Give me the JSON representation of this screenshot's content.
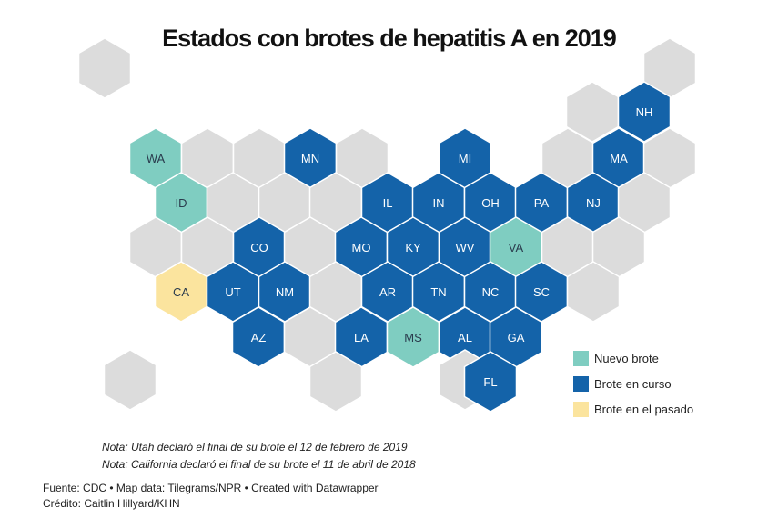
{
  "title": "Estados con brotes de hepatitis A en 2019",
  "colors": {
    "none": "#dcdcdc",
    "nuevo": "#7fcdc1",
    "curso": "#1463a9",
    "pasado": "#fbe49e",
    "label_light": "#ffffff",
    "label_dark": "#2a3b4d"
  },
  "legend": [
    {
      "key": "nuevo",
      "label": "Nuevo brote"
    },
    {
      "key": "curso",
      "label": "Brote en curso"
    },
    {
      "key": "pasado",
      "label": "Brote en el pasado"
    }
  ],
  "states": [
    {
      "abbr": "",
      "status": "none"
    },
    {
      "abbr": "",
      "status": "none"
    },
    {
      "abbr": "",
      "status": "none"
    },
    {
      "abbr": "NH",
      "status": "curso"
    },
    {
      "abbr": "WA",
      "status": "nuevo"
    },
    {
      "abbr": "",
      "status": "none"
    },
    {
      "abbr": "",
      "status": "none"
    },
    {
      "abbr": "MN",
      "status": "curso"
    },
    {
      "abbr": "",
      "status": "none"
    },
    {
      "abbr": "MI",
      "status": "curso"
    },
    {
      "abbr": "",
      "status": "none"
    },
    {
      "abbr": "MA",
      "status": "curso"
    },
    {
      "abbr": "",
      "status": "none"
    },
    {
      "abbr": "ID",
      "status": "nuevo"
    },
    {
      "abbr": "",
      "status": "none"
    },
    {
      "abbr": "",
      "status": "none"
    },
    {
      "abbr": "",
      "status": "none"
    },
    {
      "abbr": "IL",
      "status": "curso"
    },
    {
      "abbr": "IN",
      "status": "curso"
    },
    {
      "abbr": "OH",
      "status": "curso"
    },
    {
      "abbr": "PA",
      "status": "curso"
    },
    {
      "abbr": "NJ",
      "status": "curso"
    },
    {
      "abbr": "",
      "status": "none"
    },
    {
      "abbr": "",
      "status": "none"
    },
    {
      "abbr": "",
      "status": "none"
    },
    {
      "abbr": "CO",
      "status": "curso"
    },
    {
      "abbr": "",
      "status": "none"
    },
    {
      "abbr": "MO",
      "status": "curso"
    },
    {
      "abbr": "KY",
      "status": "curso"
    },
    {
      "abbr": "WV",
      "status": "curso"
    },
    {
      "abbr": "VA",
      "status": "nuevo"
    },
    {
      "abbr": "",
      "status": "none"
    },
    {
      "abbr": "",
      "status": "none"
    },
    {
      "abbr": "CA",
      "status": "pasado"
    },
    {
      "abbr": "UT",
      "status": "curso"
    },
    {
      "abbr": "NM",
      "status": "curso"
    },
    {
      "abbr": "",
      "status": "none"
    },
    {
      "abbr": "AR",
      "status": "curso"
    },
    {
      "abbr": "TN",
      "status": "curso"
    },
    {
      "abbr": "NC",
      "status": "curso"
    },
    {
      "abbr": "SC",
      "status": "curso"
    },
    {
      "abbr": "",
      "status": "none"
    },
    {
      "abbr": "AZ",
      "status": "curso"
    },
    {
      "abbr": "",
      "status": "none"
    },
    {
      "abbr": "LA",
      "status": "curso"
    },
    {
      "abbr": "MS",
      "status": "nuevo"
    },
    {
      "abbr": "AL",
      "status": "curso"
    },
    {
      "abbr": "GA",
      "status": "curso"
    },
    {
      "abbr": "",
      "status": "none"
    },
    {
      "abbr": "",
      "status": "none"
    },
    {
      "abbr": "",
      "status": "none"
    },
    {
      "abbr": "FL",
      "status": "curso"
    }
  ],
  "notes": [
    "Nota: Utah declaró el final de su brote el 12 de febrero de 2019",
    "Nota: California declaró el final de su brote el 11 de abril de 2018"
  ],
  "source": "Fuente: CDC • Map data: Tilegrams/NPR • Created with Datawrapper",
  "credit": "Crédito: Caitlin Hillyard/KHN"
}
